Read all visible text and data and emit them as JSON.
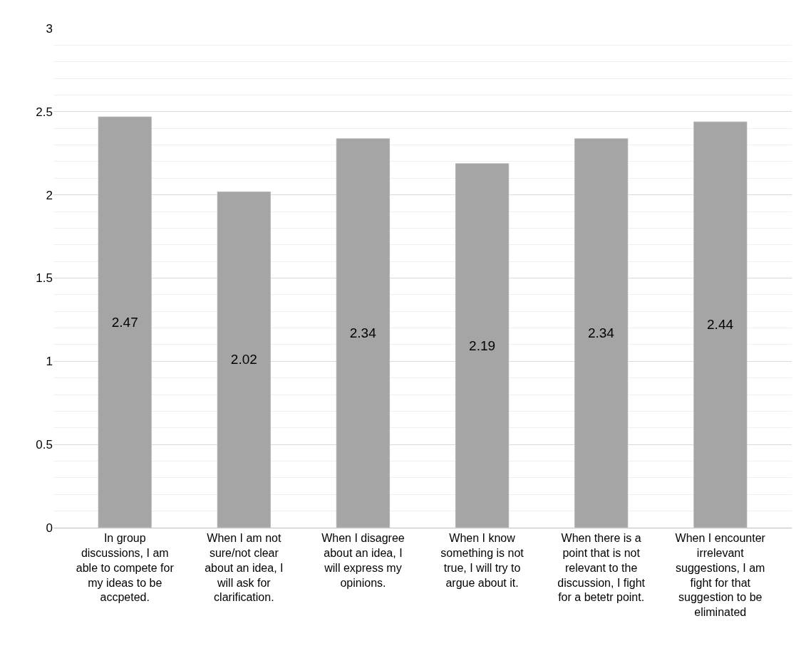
{
  "chart_data": {
    "type": "bar",
    "categories": [
      "In group discussions, I am able to compete for my ideas to be accpeted.",
      "When I am not sure/not clear about an idea, I will ask for clarification.",
      "When I disagree about an idea, I will express my opinions.",
      "When I know something is not true, I will try to argue about it.",
      "When there is a point that is not relevant to the discussion, I fight for a betetr point.",
      "When I encounter irrelevant suggestions, I am fight for that suggestion to be eliminated"
    ],
    "values": [
      2.47,
      2.02,
      2.34,
      2.19,
      2.34,
      2.44
    ],
    "color": "#a5a5a5",
    "ylim": [
      0,
      3
    ],
    "yticks": [
      0,
      0.5,
      1,
      1.5,
      2,
      2.5,
      3
    ],
    "grid": "y",
    "data_labels": true,
    "legend": false
  }
}
